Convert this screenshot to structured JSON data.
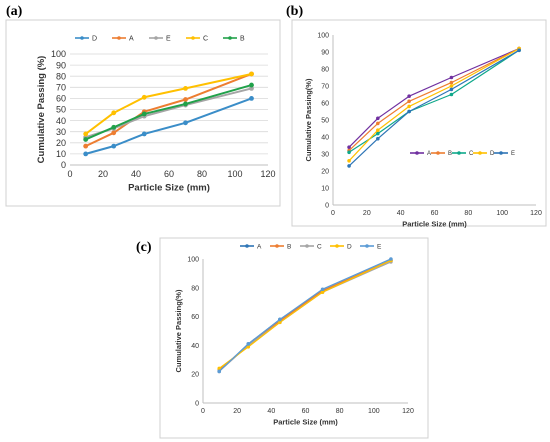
{
  "panels": [
    "(a)",
    "(b)",
    "(c)"
  ],
  "chart_data": [
    {
      "panel": "(a)",
      "type": "line",
      "xlabel": "Particle Size (mm)",
      "ylabel": "Cumulative Passing (%)",
      "xlim": [
        0,
        120
      ],
      "xticks": [
        0,
        20,
        40,
        60,
        80,
        100,
        120
      ],
      "ylim": [
        0,
        100
      ],
      "yticks": [
        0,
        10,
        20,
        30,
        40,
        50,
        60,
        70,
        80,
        90,
        100
      ],
      "grid": true,
      "legend": "top",
      "x": [
        9.5,
        26.5,
        45,
        70,
        110
      ],
      "series": [
        {
          "name": "D",
          "color": "#3a8dc8",
          "values": [
            10,
            17,
            28,
            38,
            60
          ]
        },
        {
          "name": "A",
          "color": "#ed7d31",
          "values": [
            17,
            29,
            48,
            59,
            82
          ]
        },
        {
          "name": "E",
          "color": "#a5a5a5",
          "values": [
            25,
            33,
            44,
            54,
            69
          ]
        },
        {
          "name": "C",
          "color": "#ffc000",
          "values": [
            28,
            47,
            61,
            69,
            82
          ]
        },
        {
          "name": "B",
          "color": "#21a14a",
          "values": [
            23,
            34,
            46,
            55,
            72
          ]
        }
      ]
    },
    {
      "panel": "(b)",
      "type": "line",
      "xlabel": "Particle Size (mm)",
      "ylabel": "Cumulative Passing(%)",
      "xlim": [
        0,
        120
      ],
      "xticks": [
        0,
        20,
        40,
        60,
        80,
        100,
        120
      ],
      "ylim": [
        0,
        100
      ],
      "yticks": [
        0,
        10,
        20,
        30,
        40,
        50,
        60,
        70,
        80,
        90,
        100
      ],
      "grid": false,
      "legend": "bottom-right",
      "x": [
        9.5,
        26.5,
        45,
        70,
        110
      ],
      "series": [
        {
          "name": "A",
          "color": "#7030a0",
          "values": [
            34,
            51,
            64,
            75,
            92
          ]
        },
        {
          "name": "B",
          "color": "#ed7d31",
          "values": [
            32,
            48,
            61,
            72,
            92
          ]
        },
        {
          "name": "C",
          "color": "#0fa88a",
          "values": [
            31,
            42,
            55,
            65,
            91
          ]
        },
        {
          "name": "D",
          "color": "#ffc000",
          "values": [
            26,
            44,
            58,
            70,
            92
          ]
        },
        {
          "name": "E",
          "color": "#2e75b6",
          "values": [
            23,
            39,
            55,
            68,
            91
          ]
        }
      ]
    },
    {
      "panel": "(c)",
      "type": "line",
      "xlabel": "Particle Size (mm)",
      "ylabel": "Cumulative Passing(%)",
      "xlim": [
        0,
        120
      ],
      "xticks": [
        0,
        20,
        40,
        60,
        80,
        100,
        120
      ],
      "ylim": [
        0,
        100
      ],
      "yticks": [
        0,
        20,
        40,
        60,
        80,
        100
      ],
      "grid": false,
      "legend": "top",
      "x": [
        9.5,
        26.5,
        45,
        70,
        110
      ],
      "series": [
        {
          "name": "A",
          "color": "#2e75b6",
          "values": [
            22,
            41,
            58,
            78,
            99
          ]
        },
        {
          "name": "B",
          "color": "#ed7d31",
          "values": [
            23,
            40,
            57,
            78,
            99
          ]
        },
        {
          "name": "C",
          "color": "#a5a5a5",
          "values": [
            22,
            40,
            56,
            77,
            98
          ]
        },
        {
          "name": "D",
          "color": "#ffc000",
          "values": [
            24,
            39,
            56,
            77,
            99
          ]
        },
        {
          "name": "E",
          "color": "#5b9bd5",
          "values": [
            22,
            41,
            58,
            79,
            100
          ]
        }
      ]
    }
  ]
}
